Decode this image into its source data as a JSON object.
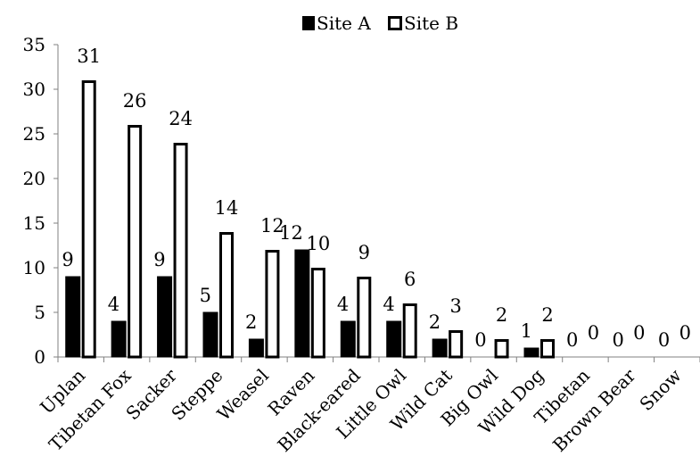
{
  "chart_data": {
    "type": "bar",
    "categories": [
      "Uplan",
      "Tibetan Fox",
      "Sacker",
      "Steppe",
      "Weasel",
      "Raven",
      "Black-eared",
      "Little Owl",
      "Wild Cat",
      "Big Owl",
      "Wild Dog",
      "Tibetan",
      "Brown Bear",
      "Snow"
    ],
    "series": [
      {
        "name": "Site A",
        "values": [
          9,
          4,
          9,
          5,
          2,
          12,
          4,
          4,
          2,
          0,
          1,
          0,
          0,
          0
        ],
        "color": "#000000"
      },
      {
        "name": "Site B",
        "values": [
          31,
          26,
          24,
          14,
          12,
          10,
          9,
          6,
          3,
          2,
          2,
          0,
          0,
          0
        ],
        "color": "#ffffff"
      }
    ],
    "title": "",
    "xlabel": "",
    "ylabel": "",
    "ylim": [
      0,
      35
    ],
    "yticks": [
      0,
      5,
      10,
      15,
      20,
      25,
      30,
      35
    ],
    "grid": false,
    "legend": "top-center",
    "data_labels": true
  }
}
